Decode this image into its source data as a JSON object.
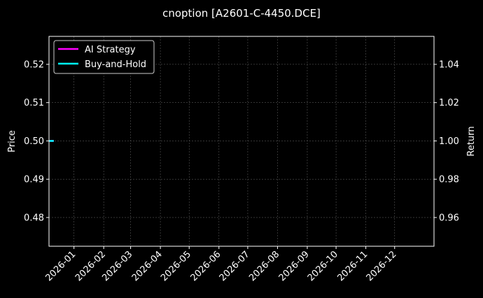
{
  "chart_data": {
    "type": "line",
    "title": "cnoption [A2601-C-4450.DCE]",
    "xlabel": "",
    "ylabel": "Price",
    "ylabel_right": "Return",
    "xlim": [
      "2025-12-06",
      "2027-01-11"
    ],
    "ylim": [
      0.4725,
      0.5273
    ],
    "ylim_right": [
      0.945,
      1.0546
    ],
    "x_ticks": [
      "2026-01",
      "2026-02",
      "2026-03",
      "2026-04",
      "2026-05",
      "2026-06",
      "2026-07",
      "2026-08",
      "2026-09",
      "2026-10",
      "2026-11",
      "2026-12"
    ],
    "y_ticks": [
      "0.48",
      "0.49",
      "0.50",
      "0.51",
      "0.52"
    ],
    "y_ticks_right": [
      "0.96",
      "0.98",
      "1.00",
      "1.02",
      "1.04"
    ],
    "grid": true,
    "legend_position": "upper-left",
    "series": [
      {
        "name": "AI Strategy",
        "axis": "right",
        "color": "#ff00ff",
        "x": [
          "2025-12-06",
          "2025-12-11"
        ],
        "y": [
          1.0,
          1.0
        ]
      },
      {
        "name": "Buy-and-Hold",
        "axis": "right",
        "color": "#00ffff",
        "x": [
          "2025-12-06",
          "2025-12-11"
        ],
        "y": [
          1.0,
          1.0
        ]
      }
    ]
  }
}
